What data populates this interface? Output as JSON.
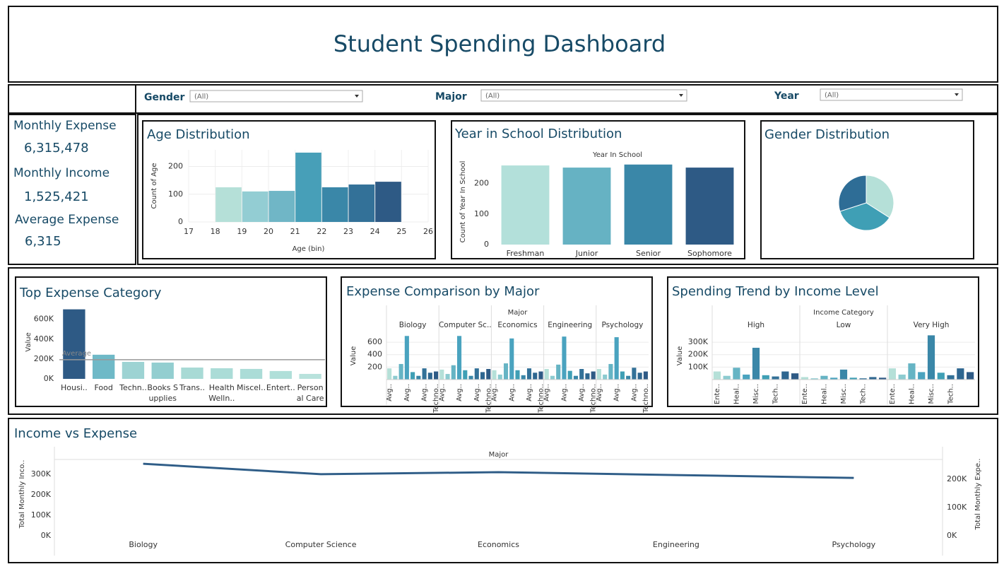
{
  "header": {
    "title": "Student Spending Dashboard"
  },
  "filters": [
    {
      "label": "Gender",
      "value": "(All)"
    },
    {
      "label": "Major",
      "value": "(All)"
    },
    {
      "label": "Year",
      "value": "(All)"
    }
  ],
  "kpis": [
    {
      "label": "Monthly Expense",
      "value": "6,315,478"
    },
    {
      "label": "Monthly Income",
      "value": "1,525,421"
    },
    {
      "label": "Average Expense",
      "value": "6,315"
    }
  ],
  "chart_data": [
    {
      "type": "histogram",
      "title": "Age Distribution",
      "bins": [
        18,
        19,
        20,
        21,
        22,
        23,
        24,
        25
      ],
      "values": [
        125,
        110,
        112,
        250,
        125,
        135,
        145
      ],
      "colors": [
        "#b5e0d8",
        "#93cdd3",
        "#70b6c6",
        "#479fb8",
        "#3a87a8",
        "#337198",
        "#2e5a85"
      ],
      "xlim": [
        17,
        26
      ],
      "xticks": [
        17,
        18,
        19,
        20,
        21,
        22,
        23,
        24,
        25,
        26
      ],
      "ylim": [
        0,
        260
      ],
      "yticks": [
        0,
        100,
        200
      ],
      "x_label": "Age (bin)",
      "y_label": "Count of Age",
      "grid": true
    },
    {
      "type": "bar",
      "title": "Year in School Distribution",
      "header": "Year In School",
      "categories": [
        "Freshman",
        "Junior",
        "Senior",
        "Sophomore"
      ],
      "values": [
        259,
        252,
        262,
        252
      ],
      "colors": [
        "#b3e0da",
        "#66b2c3",
        "#3a87a8",
        "#2e5a85"
      ],
      "ylim": [
        0,
        280
      ],
      "yticks": [
        0,
        100,
        200
      ],
      "y_label": "Count of Year In School"
    },
    {
      "type": "pie",
      "title": "Gender Distribution",
      "values": [
        34,
        36,
        30
      ],
      "colors": [
        "#b5e0d8",
        "#3f9fb5",
        "#2e6d96"
      ]
    },
    {
      "type": "bar",
      "title": "Top Expense Category",
      "categories": [
        "Housi..",
        "Food",
        "Techn..",
        "Books S\nupplies",
        "Trans..",
        "Health\nWelln..",
        "Miscel..",
        "Entert..",
        "Person\nal Care"
      ],
      "values": [
        700000,
        243000,
        171000,
        164000,
        114000,
        107000,
        100000,
        79000,
        50000
      ],
      "colors": [
        "#2e5a85",
        "#6fb9c7",
        "#9dd3d3",
        "#93ced0",
        "#a8dad5",
        "#abdcd7",
        "#abdcd7",
        "#b0dfd9",
        "#b8e2dc"
      ],
      "ylim": [
        0,
        740000
      ],
      "yticks": [
        {
          "value": 0,
          "label": "0K"
        },
        {
          "value": 200000,
          "label": "200K"
        },
        {
          "value": 400000,
          "label": "400K"
        },
        {
          "value": 600000,
          "label": "600K"
        }
      ],
      "y_label": "Value",
      "reference_line": {
        "label": "Average",
        "value": 193000
      }
    },
    {
      "type": "faceted_bar",
      "title": "Expense Comparison by Major",
      "header": "Major",
      "categories": [
        "Avg..",
        null,
        null,
        "Avg..",
        null,
        null,
        "Avg..",
        null,
        "Techno.."
      ],
      "colors": [
        "#b5e0d8",
        "#8ccbd0",
        "#66b4c4",
        "#4aa3bf",
        "#3f9fb5",
        "#3a87a8",
        "#337198",
        "#2e6690",
        "#2e5a85"
      ],
      "panels": [
        {
          "name": "Biology",
          "values": [
            180,
            60,
            250,
            700,
            120,
            60,
            180,
            110,
            130
          ]
        },
        {
          "name": "Computer Sc..",
          "values": [
            160,
            90,
            230,
            700,
            150,
            60,
            180,
            120,
            170
          ]
        },
        {
          "name": "Economics",
          "values": [
            150,
            80,
            260,
            660,
            150,
            70,
            180,
            110,
            130
          ]
        },
        {
          "name": "Engineering",
          "values": [
            170,
            60,
            240,
            690,
            140,
            60,
            170,
            100,
            130
          ]
        },
        {
          "name": "Psychology",
          "values": [
            170,
            80,
            250,
            680,
            130,
            60,
            190,
            110,
            130
          ]
        }
      ],
      "ylim": [
        0,
        760
      ],
      "yticks": [
        200,
        400,
        600
      ],
      "y_label": "Value"
    },
    {
      "type": "faceted_bar",
      "title": "Spending Trend by Income Level",
      "header": "Income Category",
      "categories": [
        "Ente..",
        null,
        "Heal..",
        null,
        "Misc..",
        null,
        "Tech..",
        null,
        null
      ],
      "colors": [
        "#b5e0d8",
        "#8ccbd0",
        "#66b4c4",
        "#4aa3bf",
        "#3a87a8",
        "#3f9fb5",
        "#337198",
        "#2e6690",
        "#2e5a85"
      ],
      "panels": [
        {
          "name": "High",
          "values": [
            65000,
            30000,
            95000,
            40000,
            255000,
            35000,
            25000,
            65000,
            50000
          ]
        },
        {
          "name": "Low",
          "values": [
            20000,
            10000,
            30000,
            15000,
            80000,
            15000,
            10000,
            20000,
            15000
          ]
        },
        {
          "name": "Very High",
          "values": [
            90000,
            40000,
            130000,
            60000,
            355000,
            55000,
            35000,
            90000,
            60000
          ]
        }
      ],
      "ylim": [
        0,
        380000
      ],
      "yticks": [
        {
          "value": 100000,
          "label": "100K"
        },
        {
          "value": 200000,
          "label": "200K"
        },
        {
          "value": 300000,
          "label": "300K"
        }
      ],
      "y_label": "Value"
    },
    {
      "type": "line",
      "title": "Income vs Expense",
      "header": "Major",
      "categories": [
        "Biology",
        "Computer Science",
        "Economics",
        "Engineering",
        "Psychology"
      ],
      "series": [
        {
          "color": "#3e6f96",
          "values": [
            351000,
            300000,
            310000,
            296000,
            282000
          ]
        },
        {
          "color": "#2e5a85",
          "axis": "y2",
          "values": [
            255000,
            218000,
            225000,
            215000,
            205000
          ]
        }
      ],
      "ylim": [
        0,
        372000
      ],
      "yticks": [
        {
          "value": 0,
          "label": "0K"
        },
        {
          "value": 100000,
          "label": "100K"
        },
        {
          "value": 200000,
          "label": "200K"
        },
        {
          "value": 300000,
          "label": "300K"
        }
      ],
      "y2lim": [
        0,
        270000
      ],
      "y2ticks": [
        {
          "value": 0,
          "label": "0K"
        },
        {
          "value": 100000,
          "label": "100K"
        },
        {
          "value": 200000,
          "label": "200K"
        }
      ],
      "y_label": "Total Monthly Inco..",
      "y2_label": "Total Monthly Expe.."
    }
  ]
}
